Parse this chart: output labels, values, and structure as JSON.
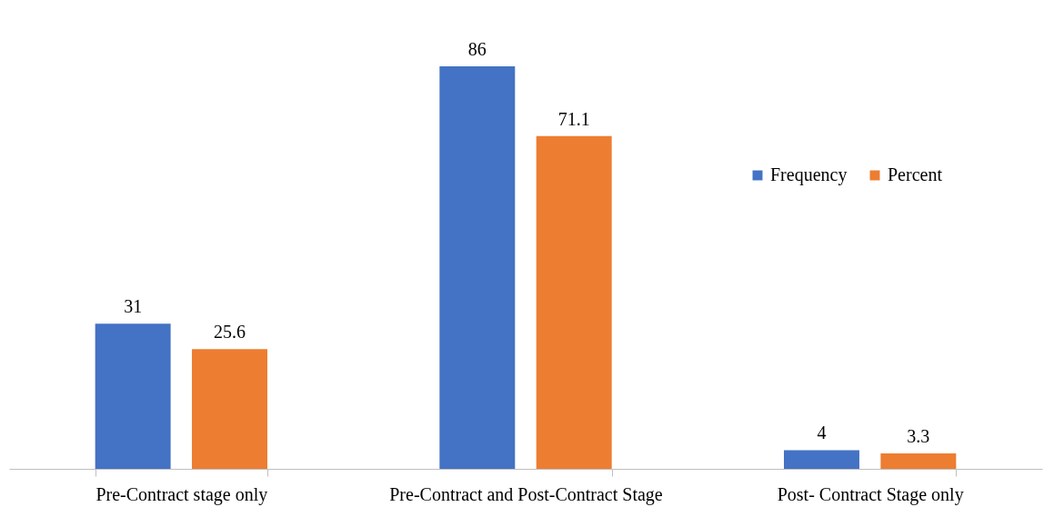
{
  "chart_data": {
    "type": "bar",
    "categories": [
      "Pre-Contract stage only",
      "Pre-Contract and Post-Contract Stage",
      "Post- Contract Stage only"
    ],
    "series": [
      {
        "name": "Frequency",
        "color": "#4472c4",
        "values": [
          31,
          86,
          4
        ]
      },
      {
        "name": "Percent",
        "color": "#ed7d31",
        "values": [
          25.6,
          71.1,
          3.3
        ]
      }
    ],
    "data_labels": true,
    "legend": "top right",
    "grid": false
  }
}
